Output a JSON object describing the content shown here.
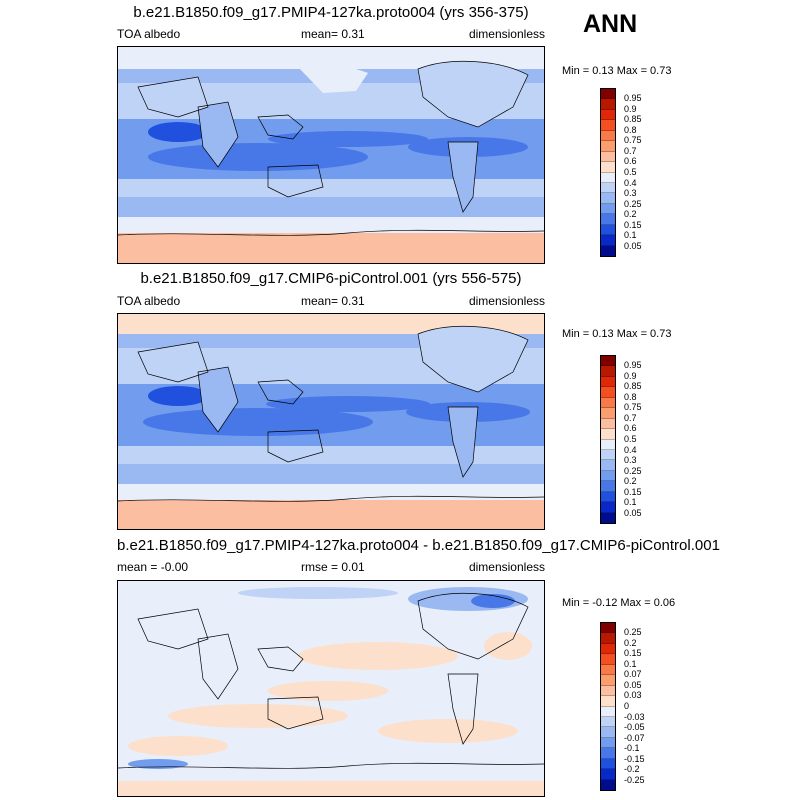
{
  "season": "ANN",
  "panels": [
    {
      "title": "b.e21.B1850.f09_g17.PMIP4-127ka.proto004 (yrs 356-375)",
      "left_label": "TOA albedo",
      "center_label": "mean=   0.31",
      "right_label": "dimensionless",
      "minmax": "Min =   0.13 Max =   0.73",
      "colorbar": "abs"
    },
    {
      "title": "b.e21.B1850.f09_g17.CMIP6-piControl.001 (yrs 556-575)",
      "left_label": "TOA albedo",
      "center_label": "mean=   0.31",
      "right_label": "dimensionless",
      "minmax": "Min =   0.13 Max =   0.73",
      "colorbar": "abs"
    },
    {
      "title": "b.e21.B1850.f09_g17.PMIP4-127ka.proto004 - b.e21.B1850.f09_g17.CMIP6-piControl.001",
      "left_label": "mean =  -0.00",
      "center_label": "rmse =  0.01",
      "right_label": "dimensionless",
      "minmax": "Min =  -0.12 Max =   0.06",
      "colorbar": "diff"
    }
  ],
  "colorbars": {
    "abs": {
      "labels": [
        "0.95",
        "0.9",
        "0.85",
        "0.8",
        "0.75",
        "0.7",
        "0.6",
        "0.5",
        "0.4",
        "0.3",
        "0.25",
        "0.2",
        "0.15",
        "0.1",
        "0.05"
      ],
      "colors": [
        "#800000",
        "#b81800",
        "#e02808",
        "#f25020",
        "#f77a48",
        "#fa9e70",
        "#fcbea0",
        "#fde0cc",
        "#e8eefa",
        "#bed3f6",
        "#9ab8f2",
        "#729cee",
        "#4878e8",
        "#2050de",
        "#0828c8",
        "#000c8c"
      ]
    },
    "diff": {
      "labels": [
        "0.25",
        "0.2",
        "0.15",
        "0.1",
        "0.07",
        "0.05",
        "0.03",
        "0",
        "-0.03",
        "-0.05",
        "-0.07",
        "-0.1",
        "-0.15",
        "-0.2",
        "-0.25"
      ],
      "colors": [
        "#800000",
        "#b81800",
        "#e02808",
        "#f25020",
        "#f77a48",
        "#fa9e70",
        "#fcbea0",
        "#fde0cc",
        "#e8eefa",
        "#bed3f6",
        "#9ab8f2",
        "#729cee",
        "#4878e8",
        "#2050de",
        "#0828c8",
        "#000c8c"
      ]
    }
  }
}
